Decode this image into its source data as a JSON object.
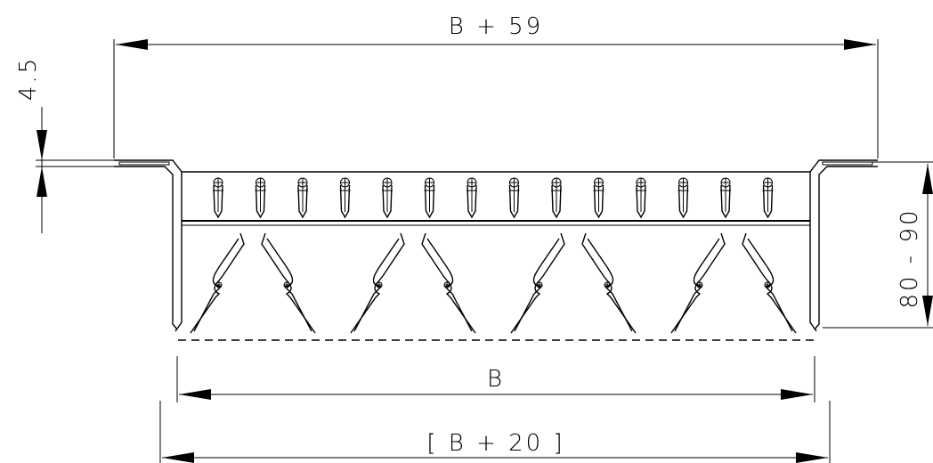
{
  "dimensions": {
    "overall_width": "B + 59",
    "flange_thickness": "4.5",
    "depth_range": "80 - 90",
    "inner_width": "B",
    "outer_width": "[ B + 20 ]"
  },
  "repeats": {
    "upper_fasteners": 14,
    "lower_spring_clips": 8
  }
}
